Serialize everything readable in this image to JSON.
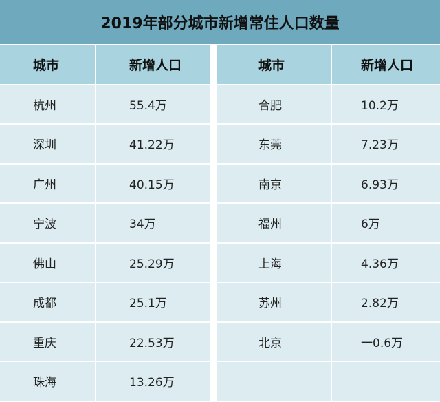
{
  "title": "2019年部分城市新增常住人口数量",
  "headers": {
    "city": "城市",
    "added": "新增人口"
  },
  "left_rows": [
    {
      "city": "杭州",
      "added": "55.4万"
    },
    {
      "city": "深圳",
      "added": "41.22万"
    },
    {
      "city": "广州",
      "added": "40.15万"
    },
    {
      "city": "宁波",
      "added": "34万"
    },
    {
      "city": "佛山",
      "added": "25.29万"
    },
    {
      "city": "成都",
      "added": "25.1万"
    },
    {
      "city": "重庆",
      "added": "22.53万"
    },
    {
      "city": "珠海",
      "added": "13.26万"
    }
  ],
  "right_rows": [
    {
      "city": "合肥",
      "added": "10.2万"
    },
    {
      "city": "东莞",
      "added": "7.23万"
    },
    {
      "city": "南京",
      "added": "6.93万"
    },
    {
      "city": "福州",
      "added": "6万"
    },
    {
      "city": "上海",
      "added": "4.36万"
    },
    {
      "city": "苏州",
      "added": "2.82万"
    },
    {
      "city": "北京",
      "added": "一0.6万"
    }
  ],
  "colors": {
    "title_bg": "#6fa9bd",
    "header_bg": "#a9d3df",
    "row_bg": "#dcecf0"
  }
}
